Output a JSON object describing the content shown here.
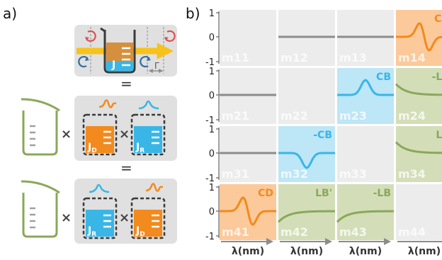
{
  "panel_a": {
    "label": "a)",
    "equals": "=",
    "times": "×",
    "top_J": "J",
    "top_gamma": "Γ",
    "row2_left_sub": "D",
    "row2_right_sub": "R",
    "row3_left_sub": "R",
    "row3_right_sub": "D",
    "J_main": "J"
  },
  "panel_b": {
    "label": "b)",
    "y_ticks": [
      "1",
      "0",
      "-1"
    ],
    "x_label": "λ(nm)",
    "cells": [
      [
        "m11",
        "m12",
        "m13",
        "m14"
      ],
      [
        "m21",
        "m22",
        "m23",
        "m24"
      ],
      [
        "m31",
        "m32",
        "m33",
        "m34"
      ],
      [
        "m41",
        "m42",
        "m43",
        "m44"
      ]
    ],
    "tags": {
      "m14": "CD",
      "m23": "CB",
      "m24": "-LB",
      "m32": "-CB",
      "m34": "LB",
      "m41": "CD",
      "m42": "LB'",
      "m43": "-LB"
    }
  },
  "colors": {
    "orange_fill": "#fbc99a",
    "orange_line": "#f28a1e",
    "blue_fill": "#bde6f7",
    "blue_line": "#39b6e6",
    "green_fill": "#d3deb8",
    "green_line": "#8aa85a",
    "gray_fill": "#ececec",
    "gray_line": "#8c8c8c",
    "red": "#e04e4e",
    "navy": "#2f6d9e",
    "yellow": "#f7c21b"
  }
}
